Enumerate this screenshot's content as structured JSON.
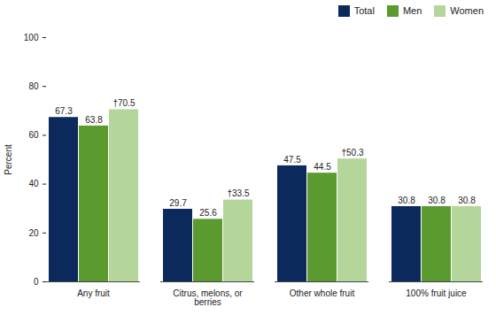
{
  "chart_data": {
    "type": "bar",
    "categories": [
      "Any fruit",
      "Citrus, melons, or berries",
      "Other whole fruit",
      "100% fruit juice"
    ],
    "series": [
      {
        "name": "Total",
        "color": "#0b2a5b",
        "values": [
          67.3,
          29.7,
          47.5,
          30.8
        ]
      },
      {
        "name": "Men",
        "color": "#5b9a2f",
        "values": [
          63.8,
          25.6,
          44.5,
          30.8
        ]
      },
      {
        "name": "Women",
        "color": "#b4d69a",
        "values": [
          70.5,
          33.5,
          50.3,
          30.8
        ],
        "value_labels": [
          "†70.5",
          "†33.5",
          "†50.3",
          "30.8"
        ]
      }
    ],
    "y_label": "Percent",
    "ylim": [
      0,
      100
    ],
    "yticks": [
      0,
      20,
      40,
      60,
      80,
      100
    ],
    "legend": "top-right",
    "data_labels": true,
    "grid": false
  }
}
